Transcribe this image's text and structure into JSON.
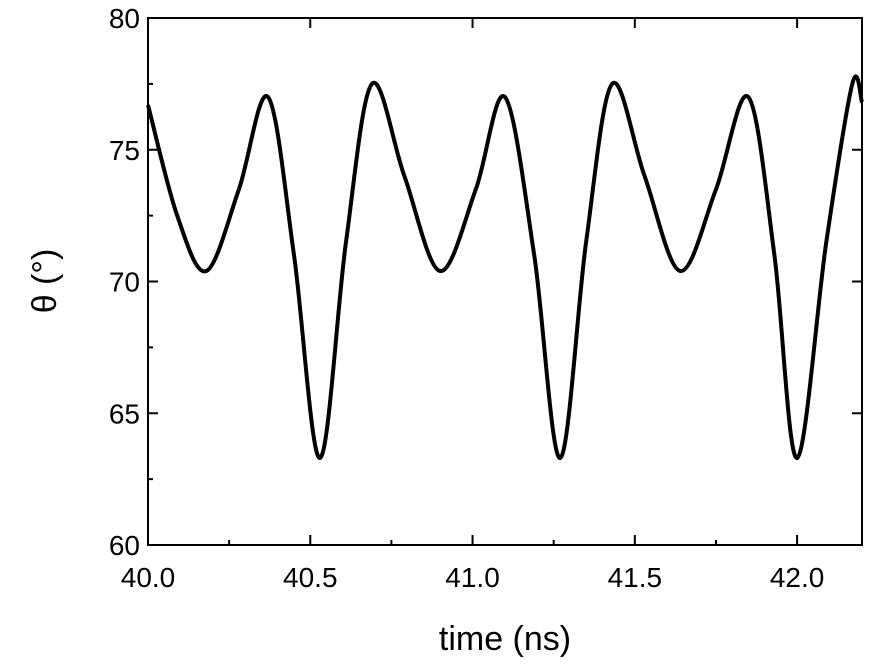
{
  "chart_data": {
    "type": "line",
    "title": "",
    "xlabel": "time (ns)",
    "ylabel": "θ (°)",
    "xlim": [
      40.0,
      42.2
    ],
    "ylim": [
      60,
      80
    ],
    "x_ticks": [
      "40.0",
      "40.5",
      "41.0",
      "41.5",
      "42.0"
    ],
    "y_ticks": [
      "60",
      "65",
      "70",
      "75",
      "80"
    ],
    "grid": false,
    "legend": "none",
    "line_color": "#000000",
    "series": [
      {
        "x": [
          40.0,
          40.09,
          40.18,
          40.28,
          40.37,
          40.45,
          40.53,
          40.61,
          40.69,
          40.79,
          40.9,
          41.01,
          41.1,
          41.19,
          41.27,
          41.35,
          41.43,
          41.53,
          41.64,
          41.75,
          41.85,
          41.93,
          42.0,
          42.09,
          42.17,
          42.2
        ],
        "y": [
          76.7,
          72.5,
          70.4,
          73.5,
          77.0,
          71.0,
          63.3,
          71.5,
          77.5,
          74.0,
          70.4,
          73.5,
          77.0,
          71.0,
          63.3,
          71.5,
          77.5,
          74.0,
          70.4,
          73.5,
          77.0,
          71.0,
          63.3,
          71.5,
          77.5,
          76.8
        ]
      }
    ]
  }
}
